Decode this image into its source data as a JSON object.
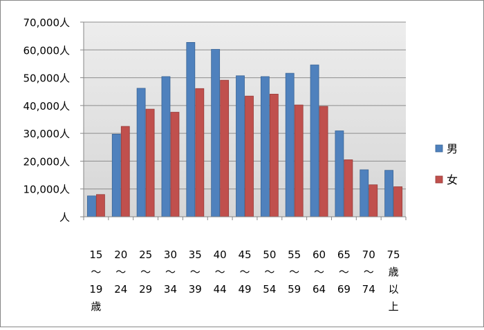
{
  "chart_data": {
    "type": "bar",
    "title": "",
    "xlabel": "",
    "ylabel": "",
    "ylim": [
      0,
      70000
    ],
    "y_ticks": [
      "人",
      "10,000人",
      "20,000人",
      "30,000人",
      "40,000人",
      "50,000人",
      "60,000人",
      "70,000人"
    ],
    "y_tick_values": [
      0,
      10000,
      20000,
      30000,
      40000,
      50000,
      60000,
      70000
    ],
    "categories": [
      [
        "15",
        "～",
        "19",
        "歳"
      ],
      [
        "20",
        "～",
        "24"
      ],
      [
        "25",
        "～",
        "29"
      ],
      [
        "30",
        "～",
        "34"
      ],
      [
        "35",
        "～",
        "39"
      ],
      [
        "40",
        "～",
        "44"
      ],
      [
        "45",
        "～",
        "49"
      ],
      [
        "50",
        "～",
        "54"
      ],
      [
        "55",
        "～",
        "59"
      ],
      [
        "60",
        "～",
        "64"
      ],
      [
        "65",
        "～",
        "69"
      ],
      [
        "70",
        "～",
        "74"
      ],
      [
        "75",
        "歳",
        "以",
        "上"
      ]
    ],
    "series": [
      {
        "name": "男",
        "color": "#4F81BD",
        "values": [
          7500,
          29700,
          46200,
          50400,
          62700,
          60200,
          50700,
          50400,
          51600,
          54600,
          30900,
          16900,
          16700
        ]
      },
      {
        "name": "女",
        "color": "#C0504D",
        "values": [
          8000,
          32500,
          38700,
          37600,
          46100,
          49100,
          43400,
          44100,
          40200,
          39700,
          20500,
          11500,
          10800
        ]
      }
    ],
    "grid": true,
    "legend": "right",
    "plot_background": "#D9D9D9"
  }
}
